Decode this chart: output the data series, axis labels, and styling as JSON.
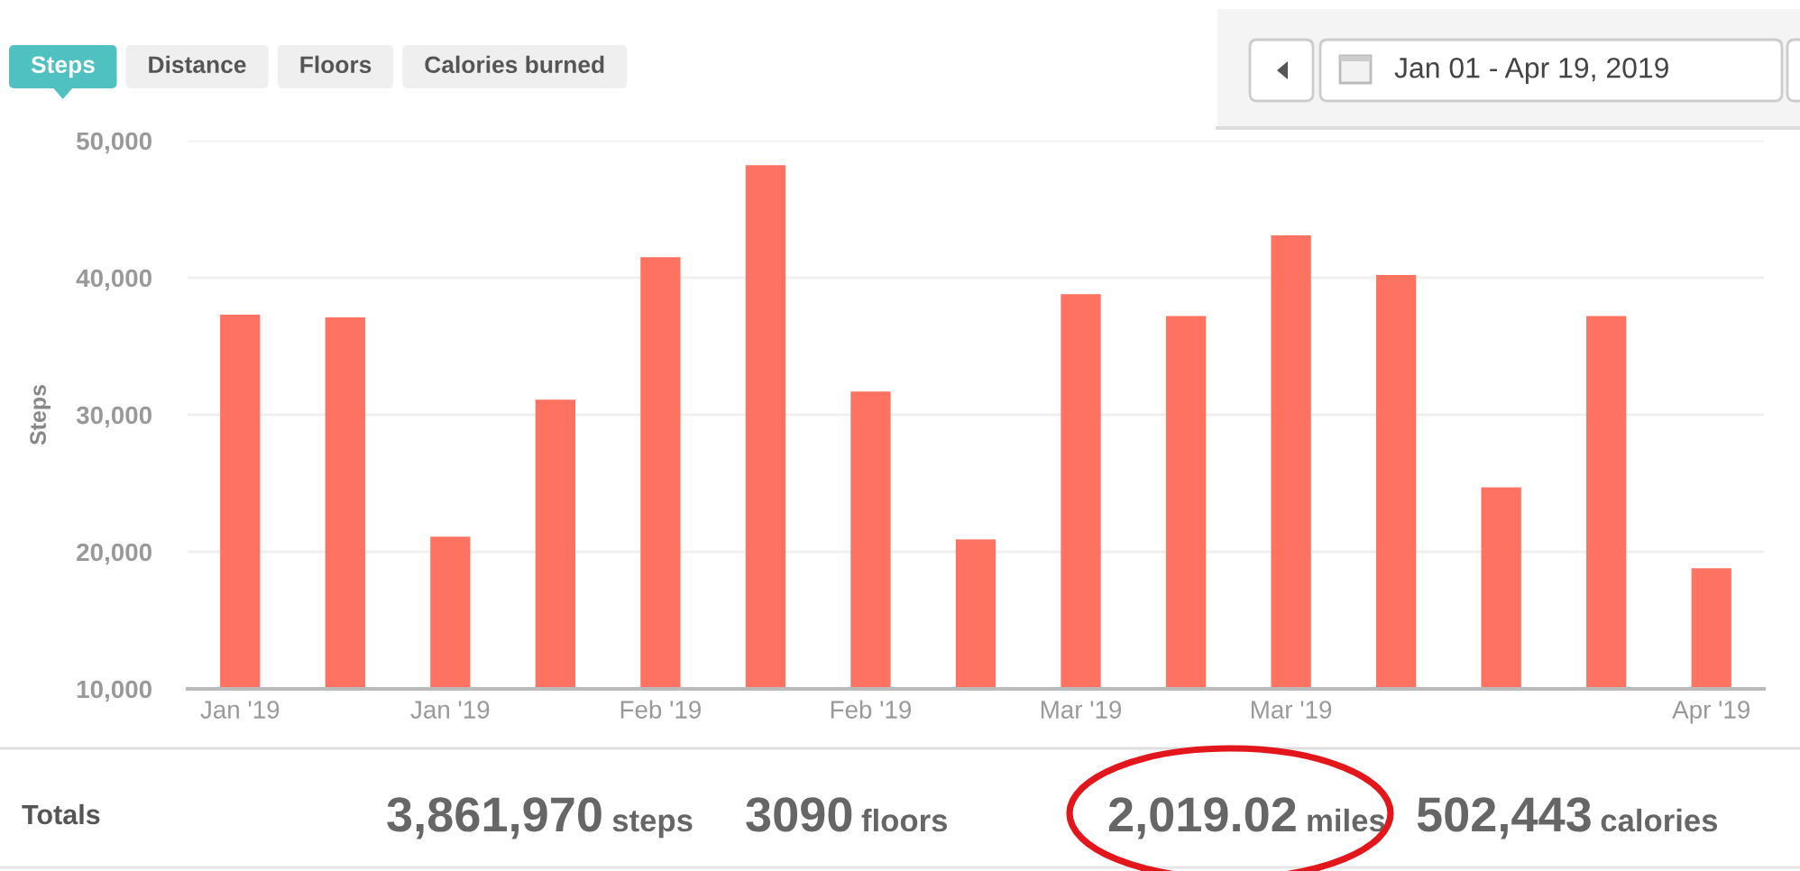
{
  "chart_data": {
    "type": "bar",
    "subtitle": "Jan 01 - Apr 19, 2019",
    "ylabel": "Steps",
    "categories": [
      "Jan '19",
      null,
      "Jan '19",
      null,
      "Feb '19",
      null,
      "Feb '19",
      null,
      "Mar '19",
      null,
      "Mar '19",
      null,
      null,
      null,
      "Apr '19"
    ],
    "values": [
      37300,
      37100,
      21100,
      31100,
      41500,
      48200,
      31700,
      20900,
      38800,
      37200,
      43100,
      40200,
      24700,
      37200,
      18800
    ],
    "color": "#fe7261",
    "ylim": [
      10000,
      50000
    ],
    "yticks": [
      {
        "value": 10000,
        "label": "10,000"
      },
      {
        "value": 20000,
        "label": "20,000"
      },
      {
        "value": 30000,
        "label": "30,000"
      },
      {
        "value": 40000,
        "label": "40,000"
      },
      {
        "value": 50000,
        "label": "50,000"
      }
    ],
    "grid": "y",
    "annotations": [
      "Steps",
      "Distance",
      "Floors",
      "Calories burned",
      "Totals",
      "3,861,970 steps",
      "3090 floors",
      "2,019.02 miles",
      "502,443 calories"
    ]
  }
}
